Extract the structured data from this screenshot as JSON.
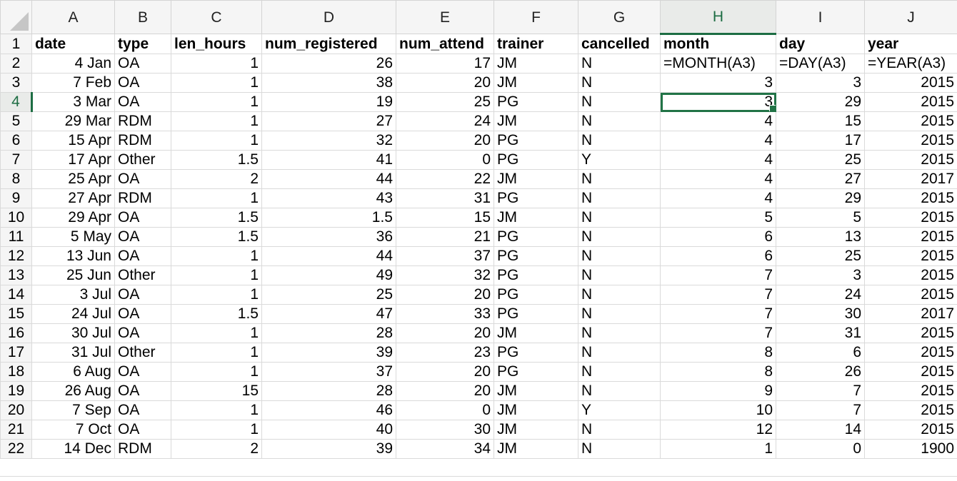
{
  "columns": [
    "A",
    "B",
    "C",
    "D",
    "E",
    "F",
    "G",
    "H",
    "I",
    "J"
  ],
  "header_row": {
    "row": "1",
    "cells": [
      "date",
      "type",
      "len_hours",
      "num_registered",
      "num_attend",
      "trainer",
      "cancelled",
      "month",
      "day",
      "year"
    ]
  },
  "formula_row": {
    "row": "2",
    "cells": [
      "4 Jan",
      "OA",
      "1",
      "26",
      "17",
      "JM",
      "N",
      "=MONTH(A3)",
      "=DAY(A3)",
      "=YEAR(A3)"
    ]
  },
  "rows": [
    {
      "row": "3",
      "cells": [
        "7 Feb",
        "OA",
        "1",
        "38",
        "20",
        "JM",
        "N",
        "3",
        "3",
        "2015"
      ]
    },
    {
      "row": "4",
      "cells": [
        "3 Mar",
        "OA",
        "1",
        "19",
        "25",
        "PG",
        "N",
        "3",
        "29",
        "2015"
      ]
    },
    {
      "row": "5",
      "cells": [
        "29 Mar",
        "RDM",
        "1",
        "27",
        "24",
        "JM",
        "N",
        "4",
        "15",
        "2015"
      ]
    },
    {
      "row": "6",
      "cells": [
        "15 Apr",
        "RDM",
        "1",
        "32",
        "20",
        "PG",
        "N",
        "4",
        "17",
        "2015"
      ]
    },
    {
      "row": "7",
      "cells": [
        "17 Apr",
        "Other",
        "1.5",
        "41",
        "0",
        "PG",
        "Y",
        "4",
        "25",
        "2015"
      ]
    },
    {
      "row": "8",
      "cells": [
        "25 Apr",
        "OA",
        "2",
        "44",
        "22",
        "JM",
        "N",
        "4",
        "27",
        "2017"
      ]
    },
    {
      "row": "9",
      "cells": [
        "27 Apr",
        "RDM",
        "1",
        "43",
        "31",
        "PG",
        "N",
        "4",
        "29",
        "2015"
      ]
    },
    {
      "row": "10",
      "cells": [
        "29 Apr",
        "OA",
        "1.5",
        "1.5",
        "15",
        "JM",
        "N",
        "5",
        "5",
        "2015"
      ]
    },
    {
      "row": "11",
      "cells": [
        "5 May",
        "OA",
        "1.5",
        "36",
        "21",
        "PG",
        "N",
        "6",
        "13",
        "2015"
      ]
    },
    {
      "row": "12",
      "cells": [
        "13 Jun",
        "OA",
        "1",
        "44",
        "37",
        "PG",
        "N",
        "6",
        "25",
        "2015"
      ]
    },
    {
      "row": "13",
      "cells": [
        "25 Jun",
        "Other",
        "1",
        "49",
        "32",
        "PG",
        "N",
        "7",
        "3",
        "2015"
      ]
    },
    {
      "row": "14",
      "cells": [
        "3 Jul",
        "OA",
        "1",
        "25",
        "20",
        "PG",
        "N",
        "7",
        "24",
        "2015"
      ]
    },
    {
      "row": "15",
      "cells": [
        "24 Jul",
        "OA",
        "1.5",
        "47",
        "33",
        "PG",
        "N",
        "7",
        "30",
        "2017"
      ]
    },
    {
      "row": "16",
      "cells": [
        "30 Jul",
        "OA",
        "1",
        "28",
        "20",
        "JM",
        "N",
        "7",
        "31",
        "2015"
      ]
    },
    {
      "row": "17",
      "cells": [
        "31 Jul",
        "Other",
        "1",
        "39",
        "23",
        "PG",
        "N",
        "8",
        "6",
        "2015"
      ]
    },
    {
      "row": "18",
      "cells": [
        "6 Aug",
        "OA",
        "1",
        "37",
        "20",
        "PG",
        "N",
        "8",
        "26",
        "2015"
      ]
    },
    {
      "row": "19",
      "cells": [
        "26 Aug",
        "OA",
        "15",
        "28",
        "20",
        "JM",
        "N",
        "9",
        "7",
        "2015"
      ]
    },
    {
      "row": "20",
      "cells": [
        "7 Sep",
        "OA",
        "1",
        "46",
        "0",
        "JM",
        "Y",
        "10",
        "7",
        "2015"
      ]
    },
    {
      "row": "21",
      "cells": [
        "7 Oct",
        "OA",
        "1",
        "40",
        "30",
        "JM",
        "N",
        "12",
        "14",
        "2015"
      ]
    },
    {
      "row": "22",
      "cells": [
        "14 Dec",
        "RDM",
        "2",
        "39",
        "34",
        "JM",
        "N",
        "1",
        "0",
        "1900"
      ]
    }
  ],
  "selection": {
    "column": "H",
    "row": "4"
  },
  "colors": {
    "accent": "#217346",
    "header_bg": "#f5f5f5",
    "gridline": "#dadada"
  }
}
